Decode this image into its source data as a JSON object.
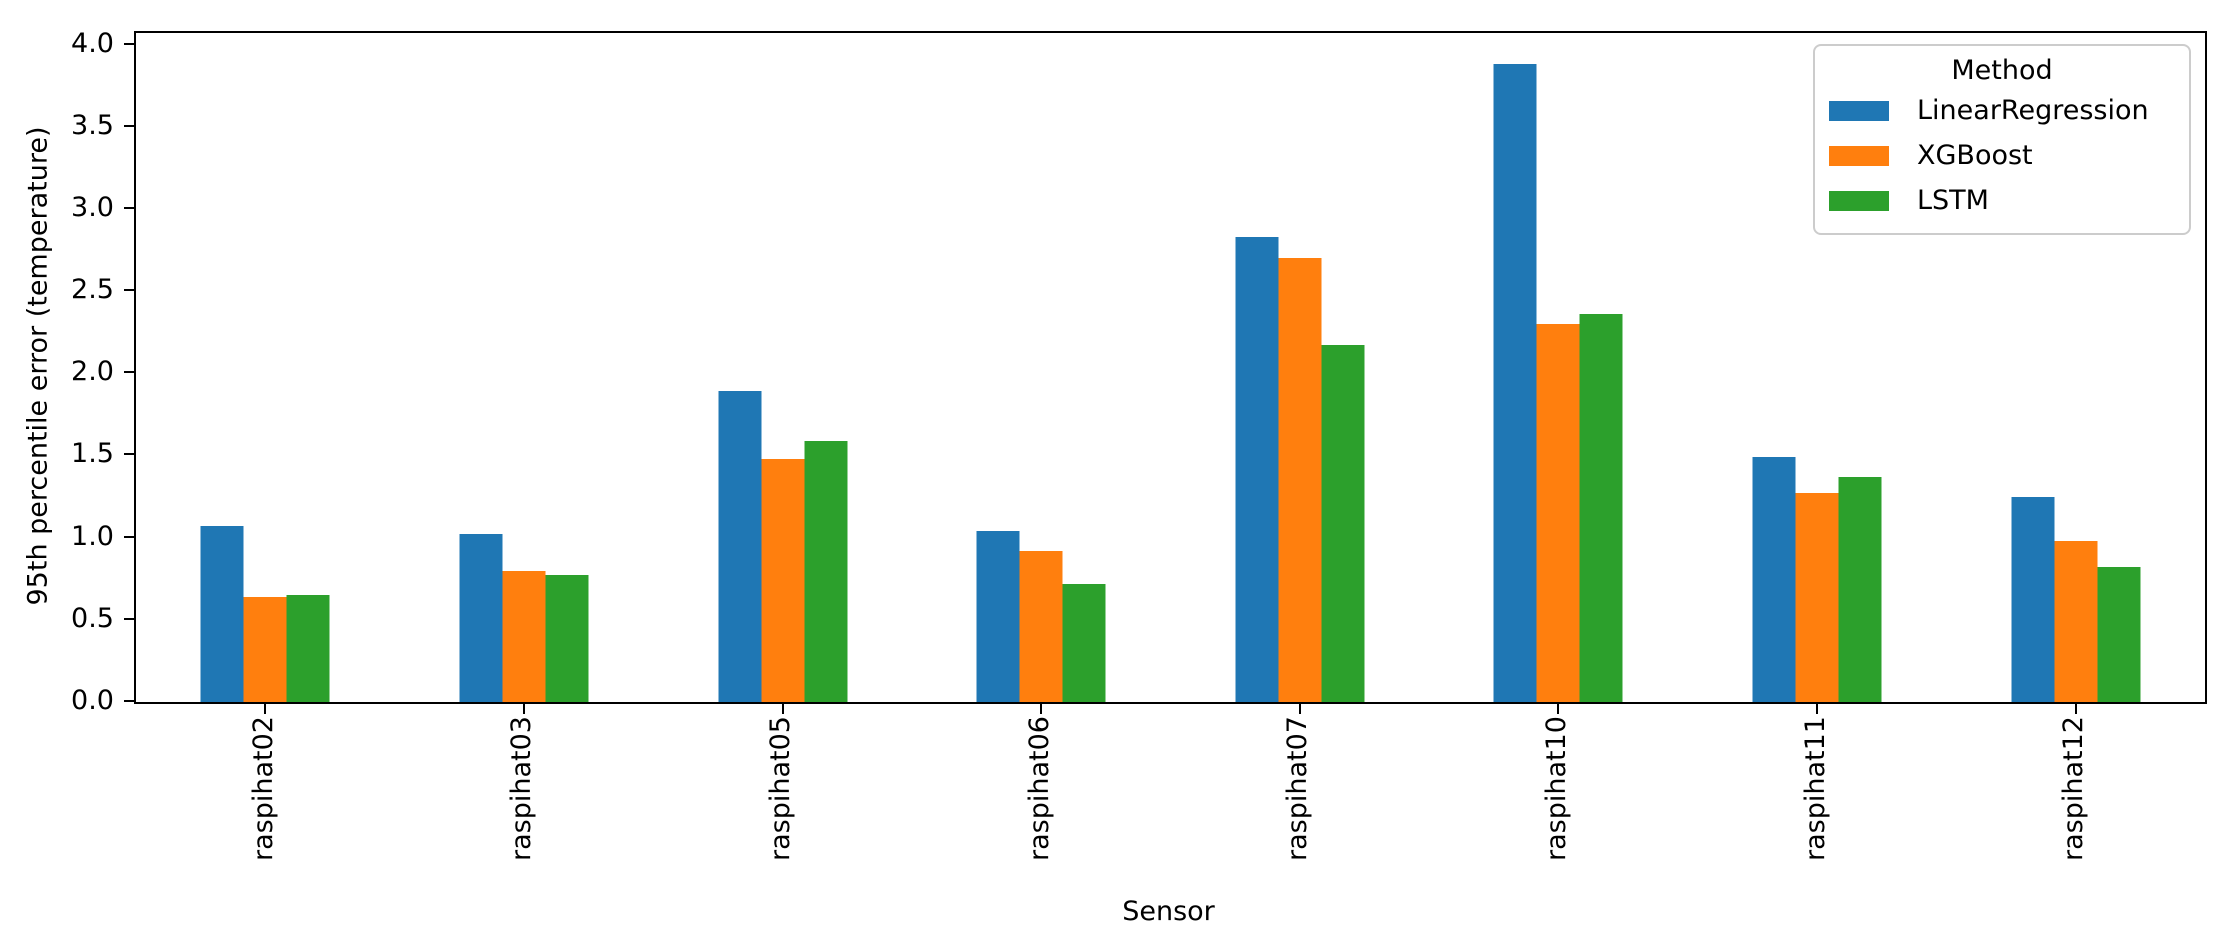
{
  "chart_data": {
    "type": "bar",
    "title": "",
    "xlabel": "Sensor",
    "ylabel": "95th percentile error (temperature)",
    "legend_title": "Method",
    "legend_position": "upper right",
    "grid": false,
    "categories": [
      "raspihat02",
      "raspihat03",
      "raspihat05",
      "raspihat06",
      "raspihat07",
      "raspihat10",
      "raspihat11",
      "raspihat12"
    ],
    "series": [
      {
        "name": "LinearRegression",
        "color": "#1f77b4",
        "values": [
          1.07,
          1.02,
          1.89,
          1.04,
          2.83,
          3.88,
          1.49,
          1.25
        ]
      },
      {
        "name": "XGBoost",
        "color": "#ff7f0e",
        "values": [
          0.64,
          0.8,
          1.48,
          0.92,
          2.7,
          2.3,
          1.27,
          0.98
        ]
      },
      {
        "name": "LSTM",
        "color": "#2ca02c",
        "values": [
          0.65,
          0.77,
          1.59,
          0.72,
          2.17,
          2.36,
          1.37,
          0.82
        ]
      }
    ],
    "ylim": [
      0,
      4.07
    ],
    "yticks": [
      "0.0",
      "0.5",
      "1.0",
      "1.5",
      "2.0",
      "2.5",
      "3.0",
      "3.5",
      "4.0"
    ],
    "axis_color": "#000000",
    "legend_border_color": "#cccccc"
  }
}
